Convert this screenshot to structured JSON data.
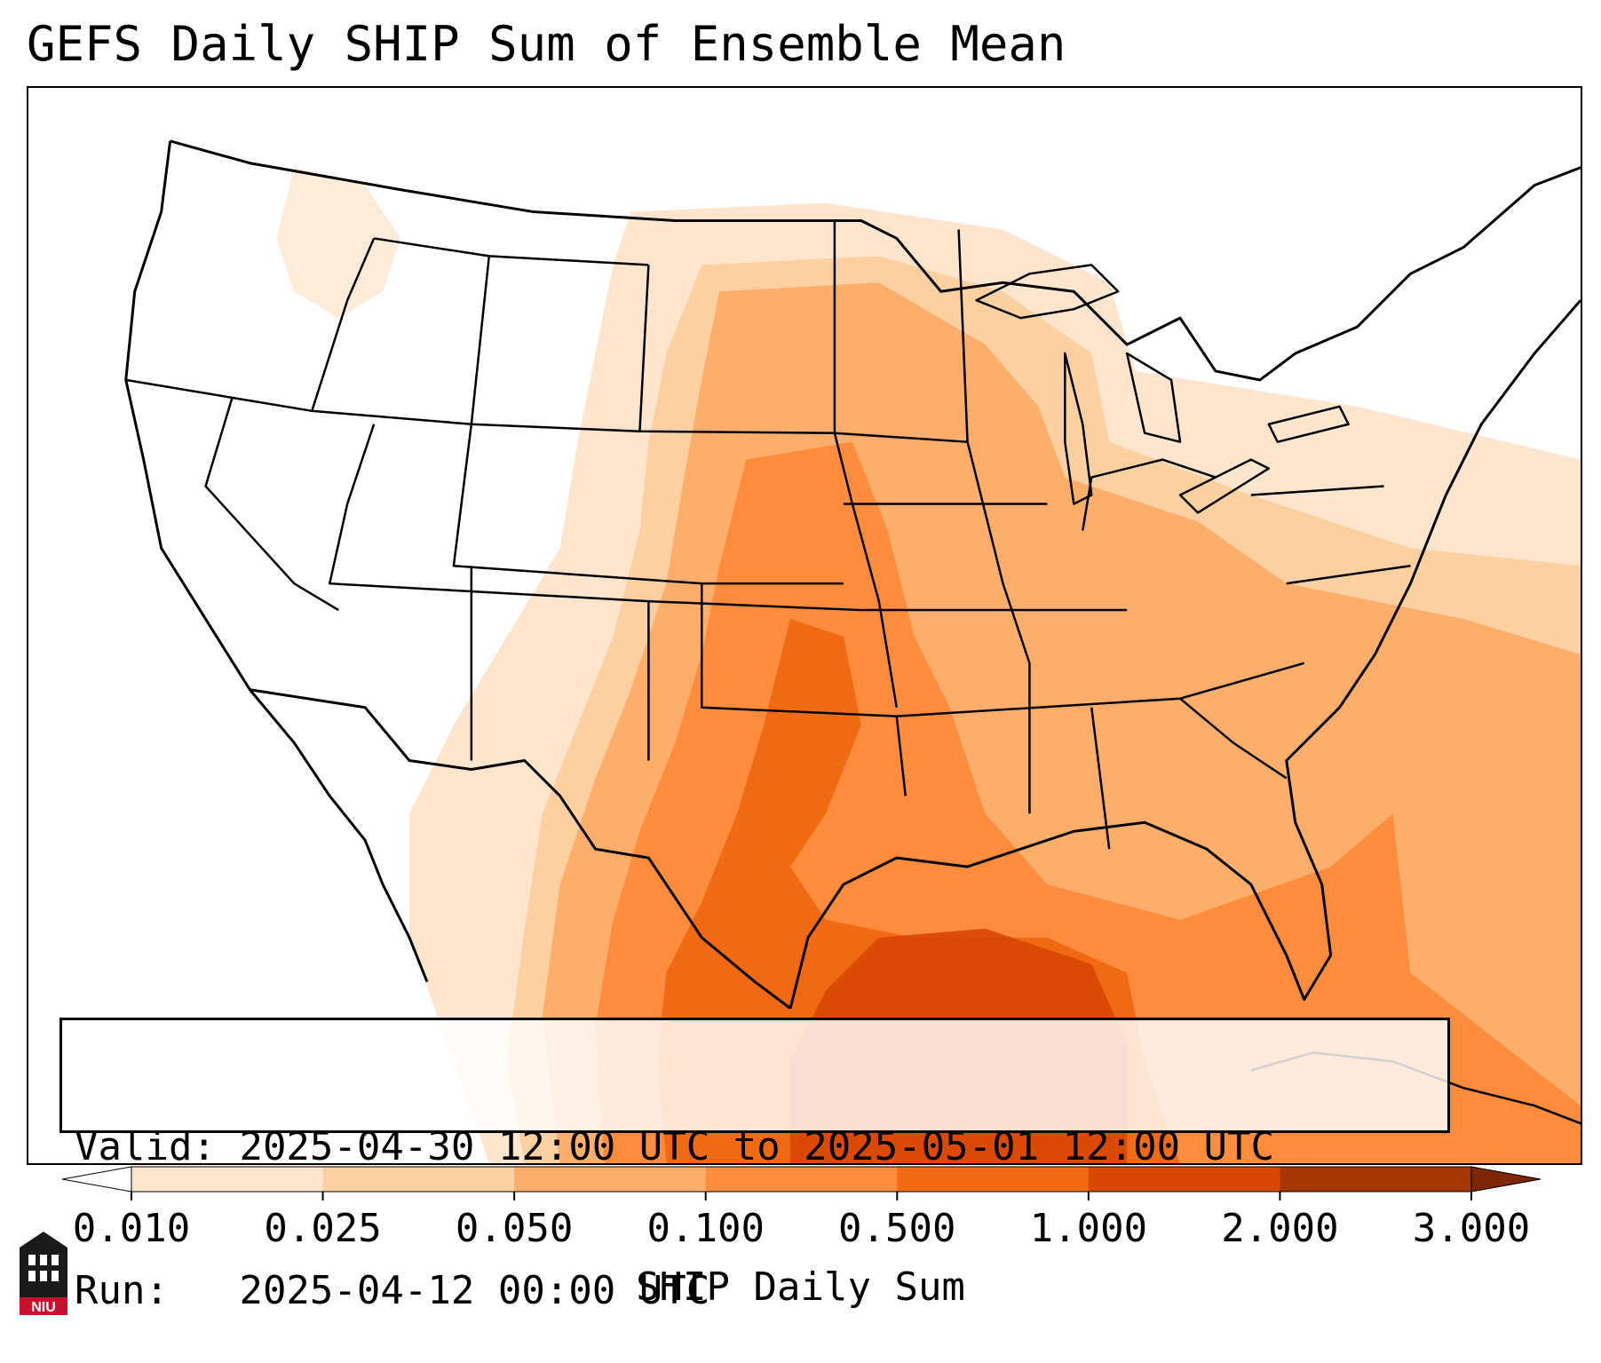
{
  "title": "GEFS Daily SHIP Sum of Ensemble Mean",
  "info": {
    "valid_label": "Valid:",
    "valid_value": "2025-04-30 12:00 UTC to 2025-05-01 12:00 UTC",
    "run_label": "Run:",
    "run_value": "2025-04-12 00:00 UTC"
  },
  "colorbar": {
    "label": "SHIP Daily Sum",
    "ticks": [
      "0.010",
      "0.025",
      "0.050",
      "0.100",
      "0.500",
      "1.000",
      "2.000",
      "3.000"
    ],
    "colors": [
      "#fee6ce",
      "#fdd0a2",
      "#fdae6b",
      "#fd8d3c",
      "#f16913",
      "#d94801",
      "#a63603"
    ],
    "under_color": "#ffffff",
    "over_color": "#7f2704",
    "extend": "both"
  },
  "logo": {
    "text": "NIU",
    "icon": "niu-tower-logo-icon"
  },
  "map": {
    "region": "Contiguous United States",
    "max_area": "Texas / Gulf of Mexico",
    "gulf_level": "1.000–2.000",
    "boundaries": [
      "state",
      "country",
      "coastline"
    ]
  }
}
